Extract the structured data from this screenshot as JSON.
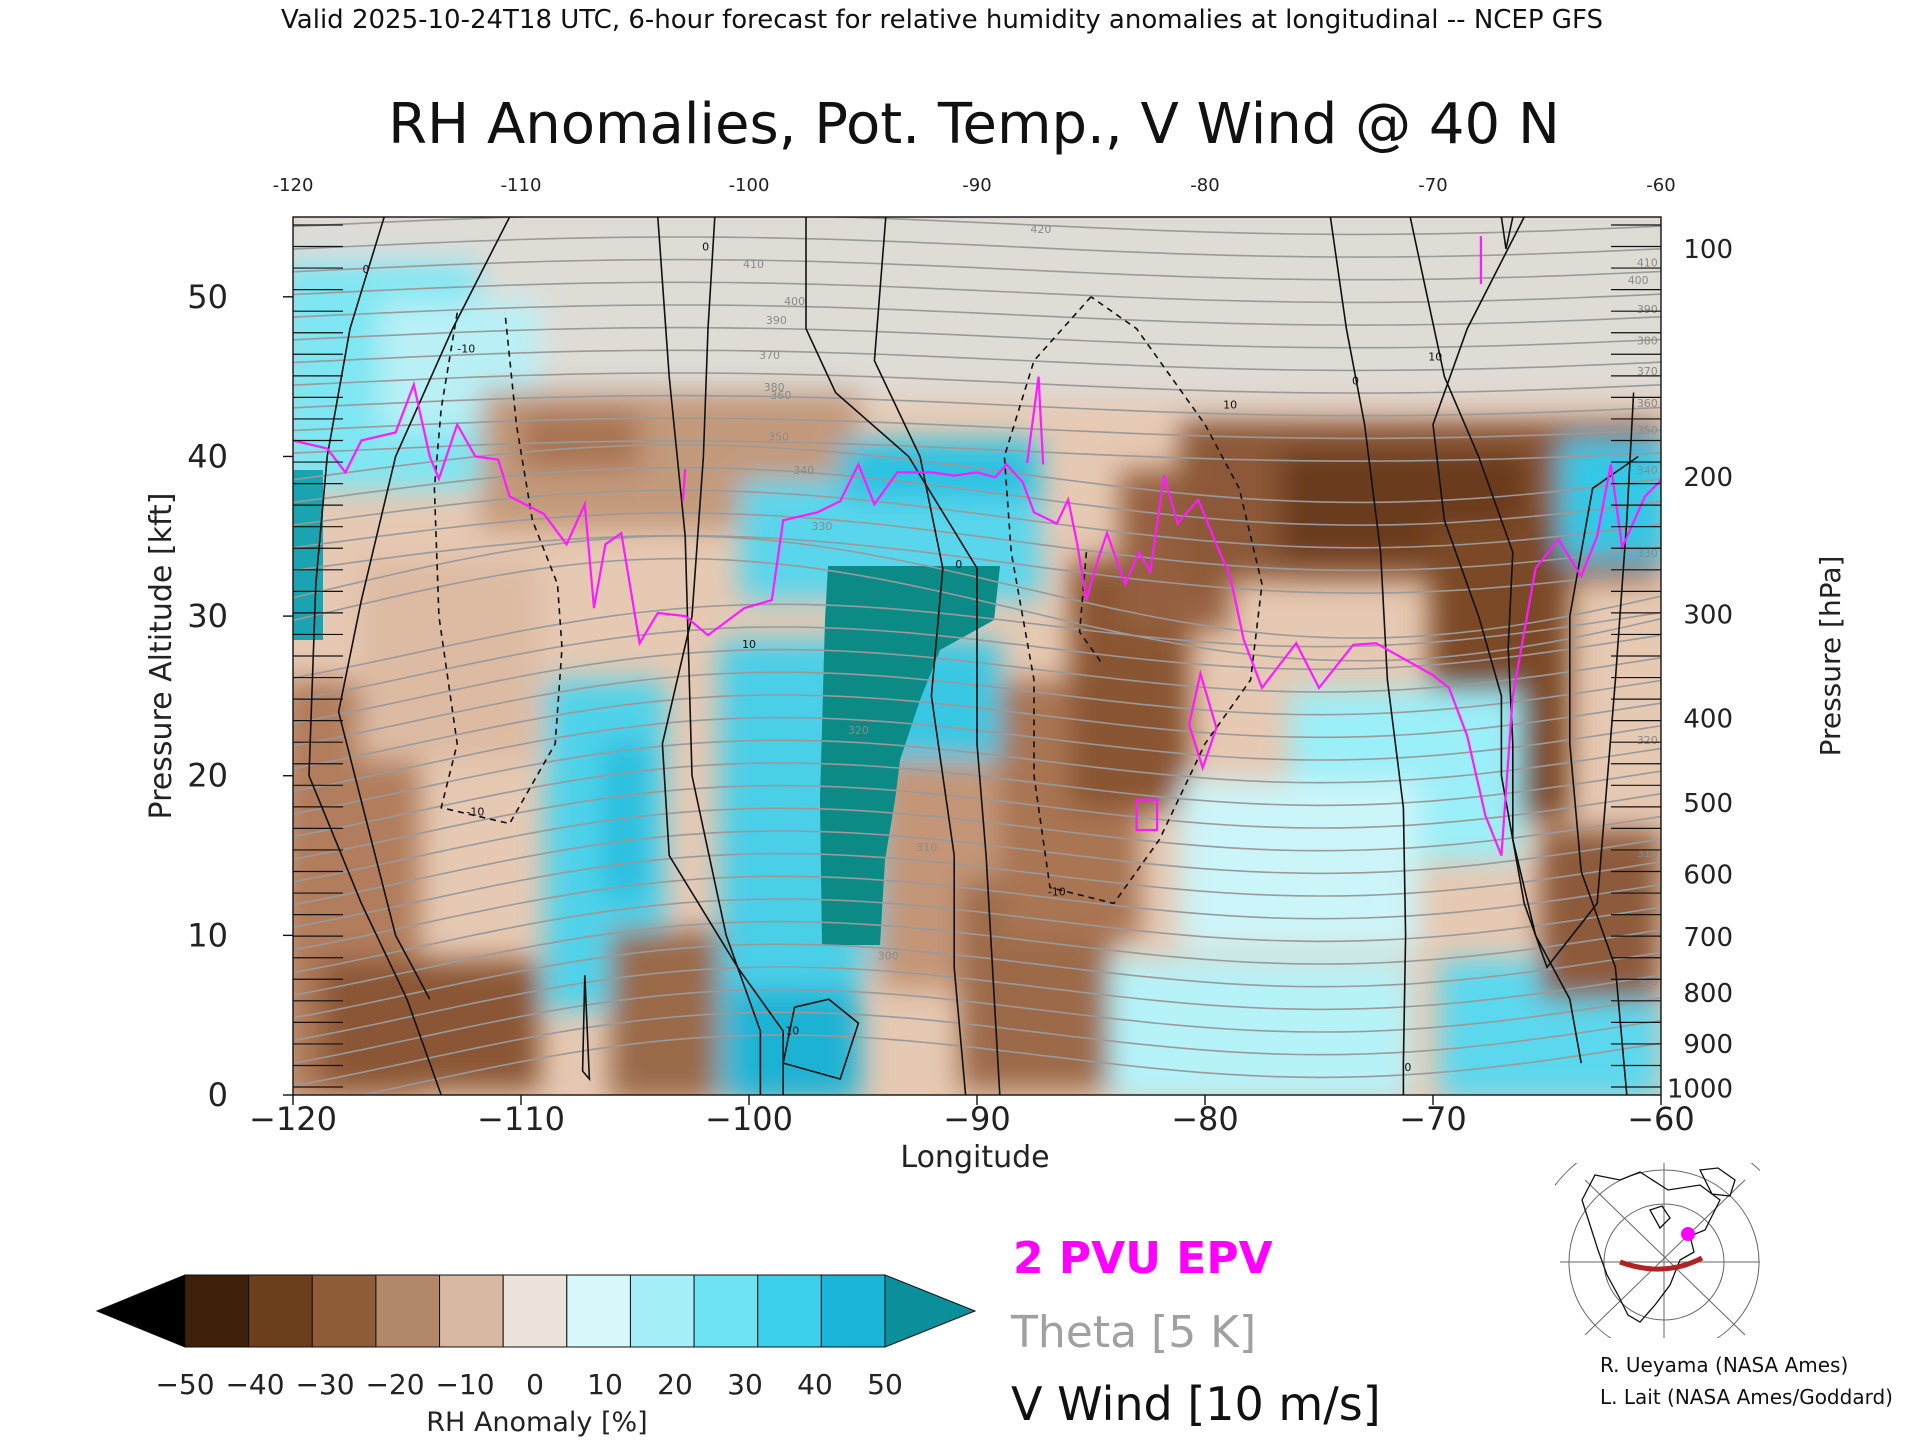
{
  "header": {
    "valid_line": "Valid 2025-10-24T18 UTC, 6-hour forecast for relative humidity anomalies at longitudinal -- NCEP GFS",
    "title": "RH Anomalies, Pot. Temp., V Wind @ 40 N"
  },
  "legend": {
    "epv_label": "2 PVU EPV",
    "theta_label": "Theta [5 K]",
    "vwind_label": "V Wind [10 m/s]",
    "epv_color": "#ff00ff",
    "theta_color": "#a0a0a0"
  },
  "colorbar": {
    "label": "RH Anomaly [%]",
    "ticks": [
      "-50",
      "-40",
      "-30",
      "-20",
      "-10",
      "0",
      "10",
      "20",
      "30",
      "40",
      "50"
    ],
    "colors": [
      "#000000",
      "#3d200a",
      "#6b3e1c",
      "#8e5c36",
      "#b3886a",
      "#d8b8a2",
      "#ece4dc",
      "#d6f8fb",
      "#a4eff8",
      "#6ee3f1",
      "#3ed0ea",
      "#1ab5d8",
      "#0b8f9a"
    ]
  },
  "credits": {
    "line1": "R. Ueyama (NASA Ames)",
    "line2": "L. Lait (NASA Ames/Goddard)"
  },
  "inset_map": {
    "description_icon": "globe-locator-map-icon",
    "section_color": "#b22222",
    "marker_color": "#ff00ff"
  },
  "chart_data": {
    "type": "heatmap",
    "title": "RH Anomalies, Pot. Temp., V Wind @ 40 N",
    "xlabel": "Longitude",
    "ylabel": "Pressure Altitude [kft]",
    "y2label": "Pressure [hPa]",
    "xlim": [
      -120,
      -60
    ],
    "ylim": [
      0,
      55
    ],
    "x_ticks": [
      -120,
      -110,
      -100,
      -90,
      -80,
      -70,
      -60
    ],
    "x_tick_labels": [
      "−120",
      "−110",
      "−100",
      "−90",
      "−80",
      "−70",
      "−60"
    ],
    "top_tick_labels": [
      "-120",
      "-110",
      "-100",
      "-90",
      "-80",
      "-70",
      "-60"
    ],
    "y_ticks": [
      0,
      10,
      20,
      30,
      40,
      50
    ],
    "pressure_ticks": [
      {
        "label": "100",
        "kft": 53.0
      },
      {
        "label": "200",
        "kft": 38.7
      },
      {
        "label": "300",
        "kft": 30.1
      },
      {
        "label": "400",
        "kft": 23.6
      },
      {
        "label": "500",
        "kft": 18.3
      },
      {
        "label": "600",
        "kft": 13.8
      },
      {
        "label": "700",
        "kft": 9.9
      },
      {
        "label": "800",
        "kft": 6.4
      },
      {
        "label": "900",
        "kft": 3.2
      },
      {
        "label": "1000",
        "kft": 0.4
      }
    ],
    "theta_contour_labels": [
      {
        "text": "420",
        "lon": -87.2,
        "kft": 54.0
      },
      {
        "text": "410",
        "lon": -99.8,
        "kft": 51.8
      },
      {
        "text": "400",
        "lon": -98.0,
        "kft": 49.5
      },
      {
        "text": "390",
        "lon": -98.8,
        "kft": 48.3
      },
      {
        "text": "380",
        "lon": -98.9,
        "kft": 44.1
      },
      {
        "text": "370",
        "lon": -99.1,
        "kft": 46.1
      },
      {
        "text": "360",
        "lon": -98.6,
        "kft": 43.6
      },
      {
        "text": "350",
        "lon": -98.7,
        "kft": 41.0
      },
      {
        "text": "340",
        "lon": -97.6,
        "kft": 38.9
      },
      {
        "text": "330",
        "lon": -96.8,
        "kft": 35.4
      },
      {
        "text": "320",
        "lon": -95.2,
        "kft": 22.6
      },
      {
        "text": "310",
        "lon": -92.2,
        "kft": 15.3
      },
      {
        "text": "300",
        "lon": -93.9,
        "kft": 8.5
      },
      {
        "text": "410",
        "lon": -60.6,
        "kft": 51.9
      },
      {
        "text": "400",
        "lon": -61.0,
        "kft": 50.8
      },
      {
        "text": "390",
        "lon": -60.6,
        "kft": 49.0
      },
      {
        "text": "380",
        "lon": -60.6,
        "kft": 47.0
      },
      {
        "text": "370",
        "lon": -60.6,
        "kft": 45.1
      },
      {
        "text": "360",
        "lon": -60.6,
        "kft": 43.1
      },
      {
        "text": "350",
        "lon": -60.6,
        "kft": 41.4
      },
      {
        "text": "340",
        "lon": -60.6,
        "kft": 38.9
      },
      {
        "text": "330",
        "lon": -60.6,
        "kft": 33.7
      },
      {
        "text": "320",
        "lon": -60.6,
        "kft": 22.0
      },
      {
        "text": "310",
        "lon": -60.6,
        "kft": 14.9
      },
      {
        "text": "300",
        "lon": -60.6,
        "kft": 6.9
      }
    ],
    "vwind_contour_labels": [
      {
        "text": "0",
        "lon": -116.8,
        "kft": 51.5
      },
      {
        "text": "0",
        "lon": -101.9,
        "kft": 52.9
      },
      {
        "text": "-10",
        "lon": -112.4,
        "kft": 46.5
      },
      {
        "text": "10",
        "lon": -100.0,
        "kft": 28.0
      },
      {
        "text": "0",
        "lon": -90.8,
        "kft": 33.0
      },
      {
        "text": "-10",
        "lon": -112.0,
        "kft": 17.5
      },
      {
        "text": "10",
        "lon": -98.1,
        "kft": 3.8
      },
      {
        "text": "10",
        "lon": -78.9,
        "kft": 43.0
      },
      {
        "text": "-10",
        "lon": -86.5,
        "kft": 12.5
      },
      {
        "text": "0",
        "lon": -73.4,
        "kft": 44.5
      },
      {
        "text": "10",
        "lon": -69.9,
        "kft": 46.0
      },
      {
        "text": "0",
        "lon": -71.1,
        "kft": 1.5
      }
    ]
  }
}
